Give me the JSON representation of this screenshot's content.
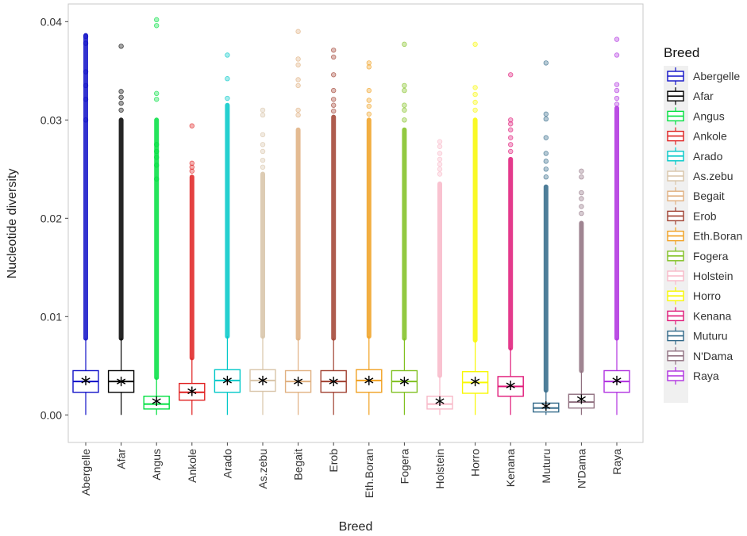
{
  "chart_data": {
    "type": "box",
    "title": "",
    "xlabel": "Breed",
    "ylabel": "Nucleotide diversity",
    "ylim": [
      -0.0028,
      0.0418
    ],
    "yticks": [
      0.0,
      0.01,
      0.02,
      0.03,
      0.04
    ],
    "ytick_labels": [
      "0.00",
      "0.01",
      "0.02",
      "0.03",
      "0.04"
    ],
    "grid": false,
    "legend": {
      "title": "Breed",
      "position": "right"
    },
    "categories": [
      "Abergelle",
      "Afar",
      "Angus",
      "Ankole",
      "Arado",
      "As.zebu",
      "Begait",
      "Erob",
      "Eth.Boran",
      "Fogera",
      "Holstein",
      "Horro",
      "Kenana",
      "Muturu",
      "N'Dama",
      "Raya"
    ],
    "series": [
      {
        "name": "Abergelle",
        "color": "#1010c8",
        "q1": 0.0023,
        "median": 0.0034,
        "q3": 0.0045,
        "mean": 0.0035,
        "whisker_low": 0.0,
        "whisker_high": 0.0078,
        "outlier_max": 0.0386,
        "outliers": [
          0.0385,
          0.0378,
          0.0349,
          0.0335,
          0.0321,
          0.03
        ]
      },
      {
        "name": "Afar",
        "color": "#000000",
        "q1": 0.0023,
        "median": 0.0034,
        "q3": 0.0045,
        "mean": 0.0034,
        "whisker_low": 0.0,
        "whisker_high": 0.0078,
        "outlier_max": 0.03,
        "outliers": [
          0.0375,
          0.0329,
          0.0323,
          0.0317,
          0.031
        ]
      },
      {
        "name": "Angus",
        "color": "#00e040",
        "q1": 0.0006,
        "median": 0.0011,
        "q3": 0.0019,
        "mean": 0.0014,
        "whisker_low": 0.0,
        "whisker_high": 0.0038,
        "outlier_max": 0.03,
        "outliers": [
          0.0402,
          0.0396,
          0.0327,
          0.0321,
          0.0275,
          0.0268,
          0.0262,
          0.0254,
          0.024
        ]
      },
      {
        "name": "Ankole",
        "color": "#e02020",
        "q1": 0.0015,
        "median": 0.0023,
        "q3": 0.0032,
        "mean": 0.0024,
        "whisker_low": 0.0,
        "whisker_high": 0.0058,
        "outlier_max": 0.0242,
        "outliers": [
          0.0294,
          0.0256,
          0.0252,
          0.0248
        ]
      },
      {
        "name": "Arado",
        "color": "#00c8c8",
        "q1": 0.0023,
        "median": 0.0035,
        "q3": 0.0046,
        "mean": 0.0035,
        "whisker_low": 0.0,
        "whisker_high": 0.008,
        "outlier_max": 0.0315,
        "outliers": [
          0.0366,
          0.0342,
          0.0322
        ]
      },
      {
        "name": "As.zebu",
        "color": "#d8c4a8",
        "q1": 0.0024,
        "median": 0.0035,
        "q3": 0.0046,
        "mean": 0.0035,
        "whisker_low": 0.0,
        "whisker_high": 0.008,
        "outlier_max": 0.0245,
        "outliers": [
          0.031,
          0.0305,
          0.0285,
          0.0275,
          0.0268,
          0.0259,
          0.0252
        ]
      },
      {
        "name": "Begait",
        "color": "#e0b080",
        "q1": 0.0023,
        "median": 0.0034,
        "q3": 0.0045,
        "mean": 0.0034,
        "whisker_low": 0.0,
        "whisker_high": 0.0078,
        "outlier_max": 0.029,
        "outliers": [
          0.039,
          0.0362,
          0.0356,
          0.0341,
          0.0335,
          0.031,
          0.0305
        ]
      },
      {
        "name": "Erob",
        "color": "#a04030",
        "q1": 0.0023,
        "median": 0.0034,
        "q3": 0.0045,
        "mean": 0.0034,
        "whisker_low": 0.0,
        "whisker_high": 0.0078,
        "outlier_max": 0.0303,
        "outliers": [
          0.0371,
          0.0364,
          0.0346,
          0.033,
          0.0321,
          0.0315,
          0.0309
        ]
      },
      {
        "name": "Eth.Boran",
        "color": "#f0a020",
        "q1": 0.0023,
        "median": 0.0035,
        "q3": 0.0046,
        "mean": 0.0035,
        "whisker_low": 0.0,
        "whisker_high": 0.008,
        "outlier_max": 0.03,
        "outliers": [
          0.0358,
          0.0354,
          0.033,
          0.032,
          0.0314,
          0.0306
        ]
      },
      {
        "name": "Fogera",
        "color": "#80c020",
        "q1": 0.0023,
        "median": 0.0034,
        "q3": 0.0045,
        "mean": 0.0034,
        "whisker_low": 0.0,
        "whisker_high": 0.0078,
        "outlier_max": 0.029,
        "outliers": [
          0.0377,
          0.0335,
          0.033,
          0.0315,
          0.031,
          0.03
        ]
      },
      {
        "name": "Holstein",
        "color": "#f8b8c8",
        "q1": 0.0006,
        "median": 0.0011,
        "q3": 0.0019,
        "mean": 0.0014,
        "whisker_low": 0.0,
        "whisker_high": 0.004,
        "outlier_max": 0.0235,
        "outliers": [
          0.0278,
          0.0273,
          0.0266,
          0.026,
          0.0255,
          0.025,
          0.0245
        ]
      },
      {
        "name": "Horro",
        "color": "#f8f800",
        "q1": 0.0022,
        "median": 0.0033,
        "q3": 0.0044,
        "mean": 0.0034,
        "whisker_low": 0.0,
        "whisker_high": 0.0076,
        "outlier_max": 0.03,
        "outliers": [
          0.0377,
          0.0333,
          0.0326,
          0.0318,
          0.031
        ]
      },
      {
        "name": "Kenana",
        "color": "#e01878",
        "q1": 0.0019,
        "median": 0.0029,
        "q3": 0.0039,
        "mean": 0.003,
        "whisker_low": 0.0,
        "whisker_high": 0.0068,
        "outlier_max": 0.026,
        "outliers": [
          0.0346,
          0.03,
          0.0296,
          0.029,
          0.0282,
          0.0275,
          0.0268
        ]
      },
      {
        "name": "Muturu",
        "color": "#306888",
        "q1": 0.0003,
        "median": 0.0007,
        "q3": 0.0012,
        "mean": 0.0009,
        "whisker_low": 0.0,
        "whisker_high": 0.0025,
        "outlier_max": 0.0232,
        "outliers": [
          0.0358,
          0.0306,
          0.0301,
          0.0282,
          0.0266,
          0.0258,
          0.025,
          0.0242
        ]
      },
      {
        "name": "N'Dama",
        "color": "#907080",
        "q1": 0.0007,
        "median": 0.0013,
        "q3": 0.0021,
        "mean": 0.0016,
        "whisker_low": 0.0,
        "whisker_high": 0.0045,
        "outlier_max": 0.0195,
        "outliers": [
          0.0248,
          0.0242,
          0.0226,
          0.022,
          0.0212,
          0.0205
        ]
      },
      {
        "name": "Raya",
        "color": "#b030e0",
        "q1": 0.0023,
        "median": 0.0034,
        "q3": 0.0045,
        "mean": 0.0035,
        "whisker_low": 0.0,
        "whisker_high": 0.0078,
        "outlier_max": 0.0312,
        "outliers": [
          0.0382,
          0.0366,
          0.0336,
          0.033,
          0.0322,
          0.0316
        ]
      }
    ]
  }
}
